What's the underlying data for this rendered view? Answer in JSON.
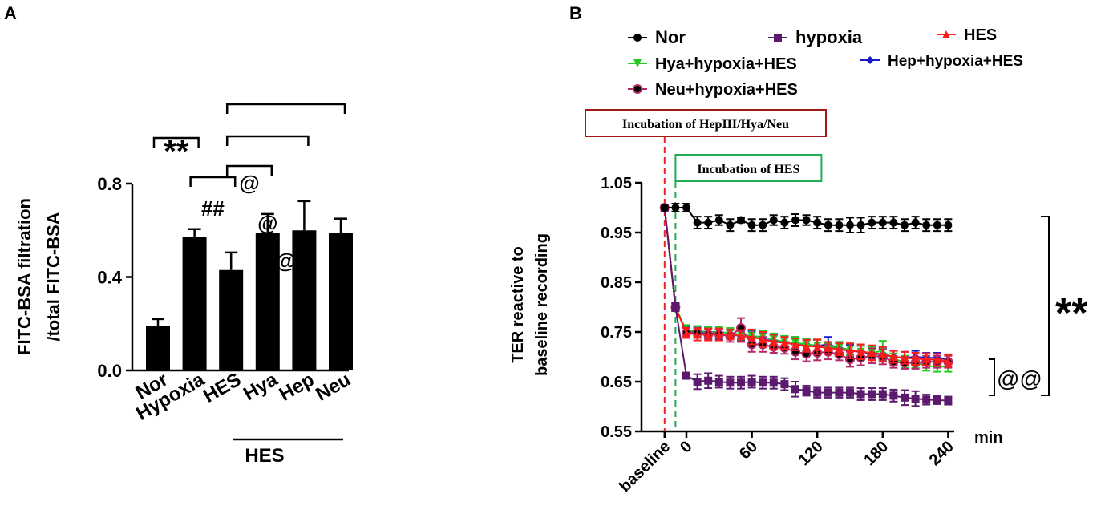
{
  "chart_data": [
    {
      "panel": "A",
      "type": "bar",
      "ylabel_line1": "FITC-BSA filtration",
      "ylabel_line2": "/total FITC-BSA",
      "ylim": [
        0,
        0.8
      ],
      "yticks": [
        "0.0",
        "0.4",
        "0.8"
      ],
      "ytick_values": [
        0,
        0.4,
        0.8
      ],
      "categories": [
        "Nor",
        "Hypoxia",
        "HES",
        "Hya",
        "Hep",
        "Neu"
      ],
      "values": [
        0.19,
        0.57,
        0.43,
        0.59,
        0.6,
        0.59
      ],
      "errors": [
        0.03,
        0.035,
        0.075,
        0.08,
        0.125,
        0.06
      ],
      "group_label": "HES",
      "group_members": [
        "Hya",
        "Hep",
        "Neu"
      ],
      "significance": [
        {
          "from": "Nor",
          "to": "Hypoxia",
          "label": "**"
        },
        {
          "from": "Hypoxia",
          "to": "HES",
          "label": "##"
        },
        {
          "from": "HES",
          "to": "Hya",
          "label": "@"
        },
        {
          "from": "HES",
          "to": "Hep",
          "label": "@"
        },
        {
          "from": "HES",
          "to": "Neu",
          "label": "@"
        }
      ]
    },
    {
      "panel": "B",
      "type": "line",
      "ylabel_line1": "TER reactive to",
      "ylabel_line2": "baseline recording",
      "xunit": "min",
      "ylim": [
        0.55,
        1.05
      ],
      "yticks": [
        "1.05",
        "0.95",
        "0.85",
        "0.75",
        "0.65",
        "0.55"
      ],
      "ytick_values": [
        1.05,
        0.95,
        0.85,
        0.75,
        0.65,
        0.55
      ],
      "xticks": [
        "baseline",
        "0",
        "60",
        "120",
        "180",
        "240"
      ],
      "xtick_values": [
        -20,
        0,
        60,
        120,
        180,
        240
      ],
      "x": [
        -20,
        -10,
        0,
        10,
        20,
        30,
        40,
        50,
        60,
        70,
        80,
        90,
        100,
        110,
        120,
        130,
        140,
        150,
        160,
        170,
        180,
        190,
        200,
        210,
        220,
        230,
        240
      ],
      "series": [
        {
          "name": "Nor",
          "color": "#000000",
          "marker": "circle",
          "values": [
            1.0,
            1.0,
            1.0,
            0.97,
            0.97,
            0.975,
            0.965,
            0.975,
            0.965,
            0.965,
            0.975,
            0.97,
            0.975,
            0.975,
            0.97,
            0.965,
            0.965,
            0.965,
            0.965,
            0.97,
            0.97,
            0.97,
            0.965,
            0.97,
            0.965,
            0.965,
            0.965
          ],
          "errors": [
            0,
            0.008,
            0.008,
            0.012,
            0.012,
            0.01,
            0.012,
            0.005,
            0.012,
            0.012,
            0.01,
            0.012,
            0.012,
            0.01,
            0.012,
            0.012,
            0.012,
            0.015,
            0.015,
            0.012,
            0.012,
            0.012,
            0.012,
            0.012,
            0.012,
            0.012,
            0.012
          ]
        },
        {
          "name": "hypoxia",
          "color": "#5b1a6e",
          "marker": "square",
          "values": [
            1.0,
            0.8,
            0.662,
            0.65,
            0.652,
            0.65,
            0.648,
            0.648,
            0.65,
            0.648,
            0.648,
            0.645,
            0.635,
            0.632,
            0.628,
            0.628,
            0.628,
            0.628,
            0.625,
            0.625,
            0.625,
            0.622,
            0.618,
            0.616,
            0.614,
            0.613,
            0.612
          ],
          "errors": [
            0,
            0.008,
            0.006,
            0.015,
            0.015,
            0.012,
            0.012,
            0.012,
            0.012,
            0.012,
            0.012,
            0.012,
            0.015,
            0.01,
            0.01,
            0.01,
            0.01,
            0.01,
            0.012,
            0.012,
            0.012,
            0.012,
            0.015,
            0.015,
            0.01,
            0.008,
            0.008
          ]
        },
        {
          "name": "HES",
          "color": "#ff1a1a",
          "marker": "triangle",
          "values": [
            1.0,
            0.8,
            0.748,
            0.745,
            0.745,
            0.745,
            0.745,
            0.742,
            0.74,
            0.735,
            0.73,
            0.728,
            0.725,
            0.722,
            0.72,
            0.718,
            0.715,
            0.712,
            0.71,
            0.708,
            0.705,
            0.7,
            0.698,
            0.696,
            0.695,
            0.694,
            0.692
          ],
          "errors": [
            0,
            0.008,
            0.01,
            0.012,
            0.012,
            0.012,
            0.01,
            0.012,
            0.015,
            0.015,
            0.015,
            0.012,
            0.012,
            0.012,
            0.015,
            0.012,
            0.012,
            0.015,
            0.015,
            0.015,
            0.015,
            0.012,
            0.012,
            0.012,
            0.012,
            0.012,
            0.012
          ]
        },
        {
          "name": "Hya+hypoxia+HES",
          "color": "#22cc22",
          "marker": "triangle-down",
          "values": [
            1.0,
            0.8,
            0.752,
            0.752,
            0.75,
            0.75,
            0.748,
            0.745,
            0.742,
            0.74,
            0.735,
            0.73,
            0.728,
            0.725,
            0.722,
            0.72,
            0.718,
            0.715,
            0.71,
            0.708,
            0.712,
            0.695,
            0.69,
            0.688,
            0.682,
            0.68,
            0.68
          ],
          "errors": [
            0,
            0.008,
            0.012,
            0.01,
            0.01,
            0.01,
            0.01,
            0.01,
            0.012,
            0.012,
            0.012,
            0.012,
            0.012,
            0.012,
            0.012,
            0.01,
            0.012,
            0.012,
            0.012,
            0.012,
            0.02,
            0.012,
            0.012,
            0.01,
            0.01,
            0.01,
            0.01
          ]
        },
        {
          "name": "Hep+hypoxia+HES",
          "color": "#1a1acc",
          "marker": "diamond",
          "values": [
            1.0,
            0.8,
            0.75,
            0.75,
            0.748,
            0.745,
            0.745,
            0.742,
            0.74,
            0.735,
            0.732,
            0.73,
            0.728,
            0.725,
            0.722,
            0.725,
            0.718,
            0.712,
            0.71,
            0.706,
            0.705,
            0.7,
            0.698,
            0.7,
            0.698,
            0.698,
            0.695
          ],
          "errors": [
            0,
            0.008,
            0.01,
            0.01,
            0.01,
            0.01,
            0.01,
            0.01,
            0.012,
            0.012,
            0.012,
            0.012,
            0.012,
            0.012,
            0.012,
            0.015,
            0.012,
            0.012,
            0.012,
            0.012,
            0.012,
            0.012,
            0.012,
            0.012,
            0.01,
            0.01,
            0.01
          ]
        },
        {
          "name": "Neu+hypoxia+HES",
          "color": "#b22a6a",
          "marker": "circle-open",
          "values": [
            1.0,
            0.8,
            0.748,
            0.748,
            0.745,
            0.745,
            0.742,
            0.758,
            0.725,
            0.725,
            0.72,
            0.718,
            0.71,
            0.706,
            0.708,
            0.71,
            0.705,
            0.695,
            0.698,
            0.702,
            0.7,
            0.69,
            0.688,
            0.688,
            0.69,
            0.69,
            0.69
          ],
          "errors": [
            0,
            0.008,
            0.01,
            0.01,
            0.01,
            0.012,
            0.012,
            0.02,
            0.015,
            0.015,
            0.012,
            0.012,
            0.015,
            0.015,
            0.015,
            0.015,
            0.012,
            0.015,
            0.015,
            0.015,
            0.015,
            0.012,
            0.012,
            0.012,
            0.012,
            0.012,
            0.012
          ]
        }
      ],
      "annotations": {
        "incubation1": "Incubation of HepIII/Hya/Neu",
        "incubation1_x": -20,
        "incubation2": "Incubation of HES",
        "incubation2_x": -10,
        "sig_nor": "**",
        "sig_group": "@@"
      }
    }
  ],
  "panel_labels": {
    "a": "A",
    "b": "B"
  }
}
